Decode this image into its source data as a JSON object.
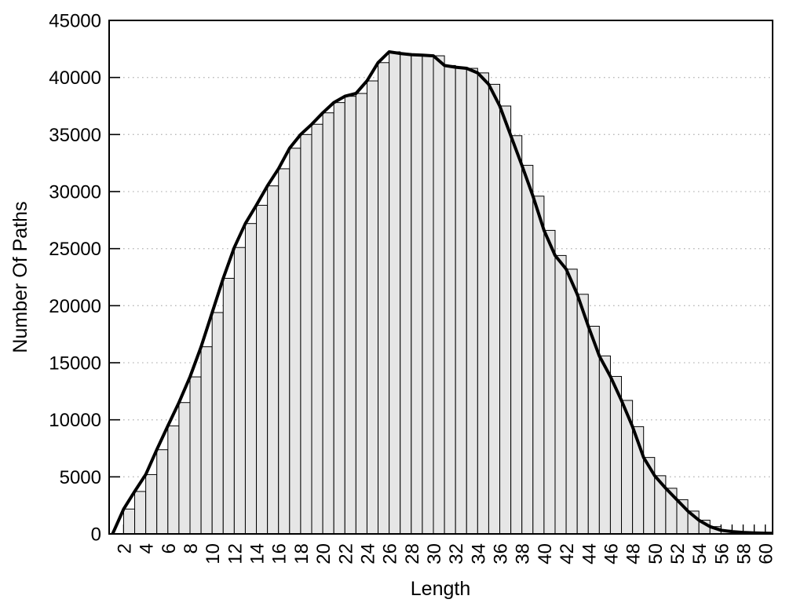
{
  "chart_data": {
    "type": "bar",
    "title": "",
    "xlabel": "Length",
    "ylabel": "Number Of Paths",
    "bar_start_x": 2,
    "categories": [
      2,
      3,
      4,
      5,
      6,
      7,
      8,
      9,
      10,
      11,
      12,
      13,
      14,
      15,
      16,
      17,
      18,
      19,
      20,
      21,
      22,
      23,
      24,
      25,
      26,
      27,
      28,
      29,
      30,
      31,
      32,
      33,
      34,
      35,
      36,
      37,
      38,
      39,
      40,
      41,
      42,
      43,
      44,
      45,
      46,
      47,
      48,
      49,
      50,
      51,
      52,
      53,
      54,
      55,
      56,
      57,
      58,
      59,
      60
    ],
    "values": [
      2180,
      3720,
      5200,
      7380,
      9470,
      11510,
      13760,
      16400,
      19400,
      22400,
      25100,
      27200,
      28800,
      30500,
      32000,
      33800,
      35000,
      35900,
      36900,
      37800,
      38350,
      38600,
      39700,
      41300,
      42250,
      42100,
      42000,
      41950,
      41900,
      41050,
      40900,
      40800,
      40400,
      39400,
      37500,
      34900,
      32300,
      29600,
      26600,
      24400,
      23200,
      21000,
      18200,
      15600,
      13800,
      11700,
      9400,
      6700,
      5100,
      4000,
      3000,
      2000,
      1200,
      640,
      320,
      200,
      130,
      90,
      60
    ],
    "line_overlay": {
      "x_prefix": 1,
      "y_prefix": 0,
      "x_suffix": [
        61,
        62
      ],
      "y_suffix": [
        45,
        30
      ]
    },
    "xticks": [
      2,
      4,
      6,
      8,
      10,
      12,
      14,
      16,
      18,
      20,
      22,
      24,
      26,
      28,
      30,
      32,
      34,
      36,
      38,
      40,
      42,
      44,
      46,
      48,
      50,
      52,
      54,
      56,
      58,
      60
    ],
    "yticks": [
      0,
      5000,
      10000,
      15000,
      20000,
      25000,
      30000,
      35000,
      40000,
      45000
    ],
    "xlim": [
      0.69,
      60.66
    ],
    "ylim": [
      0,
      45000
    ],
    "grid": "horizontal-dotted",
    "legend": "none"
  },
  "styles": {
    "bar_fill": "#e6e6e6",
    "bar_stroke": "#000000",
    "line_color": "#000000",
    "grid_color": "#b9b9b9",
    "border_color": "#000000",
    "background": "#ffffff",
    "text_color": "#000000"
  }
}
